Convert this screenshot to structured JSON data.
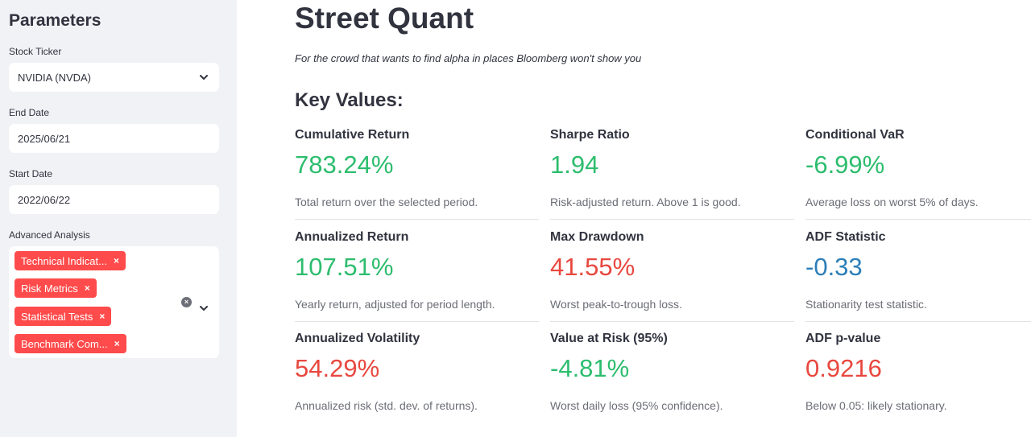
{
  "sidebar": {
    "title": "Parameters",
    "ticker": {
      "label": "Stock Ticker",
      "value": "NVIDIA (NVDA)"
    },
    "end_date": {
      "label": "End Date",
      "value": "2025/06/21"
    },
    "start_date": {
      "label": "Start Date",
      "value": "2022/06/22"
    },
    "advanced": {
      "label": "Advanced Analysis",
      "tags": [
        "Technical Indicat...",
        "Risk Metrics",
        "Statistical Tests",
        "Benchmark Com..."
      ],
      "remove_glyph": "×",
      "clear_glyph": "×"
    }
  },
  "main": {
    "title": "Street Quant",
    "subtitle": "For the crowd that wants to find alpha in places Bloomberg won't show you",
    "section_title": "Key Values:",
    "metrics": [
      {
        "label": "Cumulative Return",
        "value": "783.24%",
        "desc": "Total return over the selected period.",
        "color": "#2dbd6e"
      },
      {
        "label": "Sharpe Ratio",
        "value": "1.94",
        "desc": "Risk-adjusted return. Above 1 is good.",
        "color": "#2dbd6e"
      },
      {
        "label": "Conditional VaR",
        "value": "-6.99%",
        "desc": "Average loss on worst 5% of days.",
        "color": "#2dbd6e"
      },
      {
        "label": "Annualized Return",
        "value": "107.51%",
        "desc": "Yearly return, adjusted for period length.",
        "color": "#2dbd6e"
      },
      {
        "label": "Max Drawdown",
        "value": "41.55%",
        "desc": "Worst peak-to-trough loss.",
        "color": "#e8483f"
      },
      {
        "label": "ADF Statistic",
        "value": "-0.33",
        "desc": "Stationarity test statistic.",
        "color": "#2c7fb8"
      },
      {
        "label": "Annualized Volatility",
        "value": "54.29%",
        "desc": "Annualized risk (std. dev. of returns).",
        "color": "#e8483f"
      },
      {
        "label": "Value at Risk (95%)",
        "value": "-4.81%",
        "desc": "Worst daily loss (95% confidence).",
        "color": "#2dbd6e"
      },
      {
        "label": "ADF p-value",
        "value": "0.9216",
        "desc": "Below 0.05: likely stationary.",
        "color": "#e8483f"
      }
    ]
  }
}
